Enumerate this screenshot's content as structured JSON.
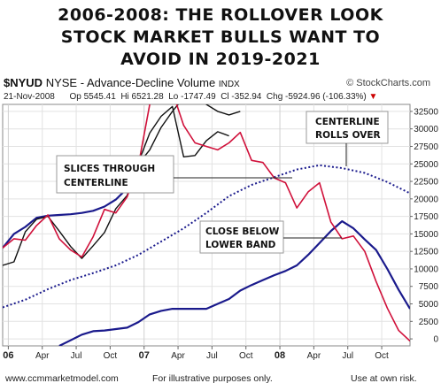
{
  "title_lines": [
    "2006-2008:  THE ROLLOVER LOOK",
    "STOCK MARKET BULLS WANT TO",
    "AVOID IN 2019-2021"
  ],
  "header": {
    "symbol": "$NYUD",
    "description": "NYSE - Advance-Decline Volume",
    "index_tag": "INDX",
    "brand": "© StockCharts.com",
    "date": "21-Nov-2008",
    "op": "Op 5545.41",
    "hi": "Hi 6521.28",
    "lo": "Lo -1747.49",
    "cl": "Cl -352.94",
    "chg": "Chg -5924.96 (-106.33%)",
    "chg_icon": "down-triangle"
  },
  "footer": {
    "site": "www.ccmmarketmodel.com",
    "note1": "For illustrative purposes only.",
    "note2": "Use at own risk."
  },
  "colors": {
    "price": "#d0103a",
    "band": "#111111",
    "lower_band": "#1a1a8c",
    "centerline": "#1a1a8c",
    "change": "#cc0000"
  },
  "annotations": [
    {
      "id": "slices",
      "lines": [
        "SLICES THROUGH",
        "CENTERLINE"
      ]
    },
    {
      "id": "rolls",
      "lines": [
        "CENTERLINE",
        "ROLLS OVER"
      ]
    },
    {
      "id": "close",
      "lines": [
        "CLOSE BELOW",
        "LOWER BAND"
      ]
    }
  ],
  "chart_data": {
    "type": "line",
    "x_ticks": [
      "06",
      "Apr",
      "Jul",
      "Oct",
      "07",
      "Apr",
      "Jul",
      "Oct",
      "08",
      "Apr",
      "Jul",
      "Oct"
    ],
    "y_ticks": [
      0,
      2500,
      5000,
      7500,
      10000,
      12500,
      15000,
      17500,
      20000,
      22500,
      25000,
      27500,
      30000,
      32500
    ],
    "ylim": [
      -1000,
      33500
    ],
    "xlim": [
      0,
      36
    ],
    "grid": true,
    "series": [
      {
        "key": "price",
        "x": [
          0,
          1,
          2,
          3,
          4,
          5,
          6,
          7,
          8,
          9,
          10,
          11,
          12,
          13,
          14,
          15,
          16,
          17,
          18,
          19,
          20,
          21,
          22,
          23,
          24,
          25,
          26,
          27,
          28,
          29,
          30,
          31,
          32,
          33,
          34,
          35,
          36
        ],
        "y": [
          13000,
          14300,
          14100,
          16200,
          17700,
          14300,
          12700,
          11700,
          14600,
          18500,
          18000,
          20300,
          24800,
          33500,
          36000,
          35300,
          30500,
          28000,
          27500,
          27000,
          28000,
          29500,
          25500,
          25200,
          23000,
          22300,
          18700,
          21000,
          22300,
          16700,
          14300,
          14700,
          12500,
          8200,
          4400,
          1200,
          -300
        ]
      },
      {
        "key": "centerline",
        "x": [
          0,
          2,
          4,
          6,
          8,
          10,
          12,
          14,
          16,
          18,
          20,
          22,
          24,
          26,
          28,
          30,
          32,
          34,
          36
        ],
        "y": [
          4500,
          5600,
          7100,
          8400,
          9400,
          10500,
          12000,
          13900,
          15800,
          18000,
          20400,
          22000,
          23100,
          24200,
          24800,
          24400,
          23700,
          22400,
          20800
        ]
      },
      {
        "key": "upper_band",
        "x": [
          0,
          1,
          2,
          3,
          4,
          5,
          6,
          7,
          8,
          9,
          10,
          11,
          12,
          13,
          14,
          15,
          16,
          17,
          18,
          19,
          20,
          21
        ],
        "y": [
          10500,
          11000,
          15300,
          17100,
          17500,
          15400,
          13200,
          11500,
          13300,
          15200,
          18600,
          20500,
          25000,
          27000,
          30200,
          32500,
          34500,
          36000,
          33500,
          32500,
          32000,
          32500
        ]
      },
      {
        "key": "upper_band_mid",
        "x": [
          12,
          13,
          14,
          15,
          16,
          17,
          18,
          19,
          20
        ],
        "y": [
          25200,
          29400,
          31800,
          33200,
          26000,
          26200,
          28300,
          29600,
          29000
        ]
      },
      {
        "key": "lower_band_left",
        "x": [
          0,
          1,
          2,
          3,
          4,
          5,
          6,
          7,
          8,
          9,
          10,
          11,
          12
        ],
        "y": [
          13000,
          15000,
          16000,
          17300,
          17600,
          17700,
          17800,
          18000,
          18300,
          18900,
          19900,
          21500,
          24000
        ]
      },
      {
        "key": "lower_band",
        "x": [
          5,
          6,
          7,
          8,
          9,
          10,
          11,
          12,
          13,
          14,
          15,
          16,
          17,
          18,
          19,
          20,
          21,
          22,
          23,
          24,
          25,
          26,
          27,
          28,
          29,
          30,
          31,
          32,
          33,
          34,
          35,
          36
        ],
        "y": [
          -1000,
          -200,
          600,
          1100,
          1200,
          1400,
          1600,
          2400,
          3500,
          4000,
          4300,
          4300,
          4300,
          4300,
          5000,
          5700,
          6900,
          7700,
          8400,
          9100,
          9700,
          10500,
          12000,
          13700,
          15400,
          16800,
          15800,
          14200,
          12700,
          10000,
          7000,
          4300
        ]
      }
    ]
  }
}
